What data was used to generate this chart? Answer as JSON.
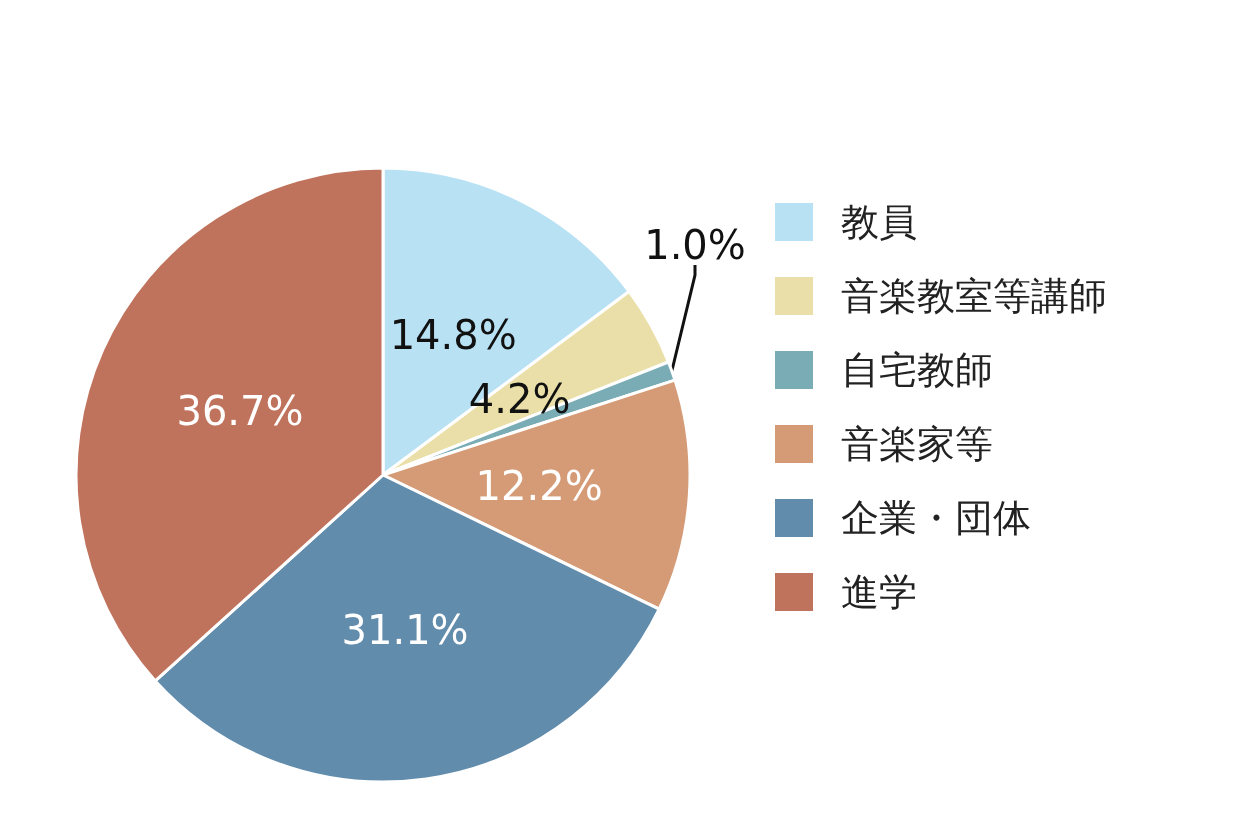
{
  "chart_data": {
    "type": "pie",
    "categories": [
      "教員",
      "音楽教室等講師",
      "自宅教師",
      "音楽家等",
      "企業・団体",
      "進学"
    ],
    "values": [
      14.8,
      4.2,
      1.0,
      12.2,
      31.1,
      36.7
    ],
    "colors": [
      "#b8e2f4",
      "#eadfa8",
      "#7aacb5",
      "#d59b76",
      "#618cac",
      "#c0735c"
    ],
    "value_labels": [
      "14.8%",
      "4.2%",
      "1.0%",
      "12.2%",
      "31.1%",
      "36.7%"
    ],
    "legend": "right"
  }
}
